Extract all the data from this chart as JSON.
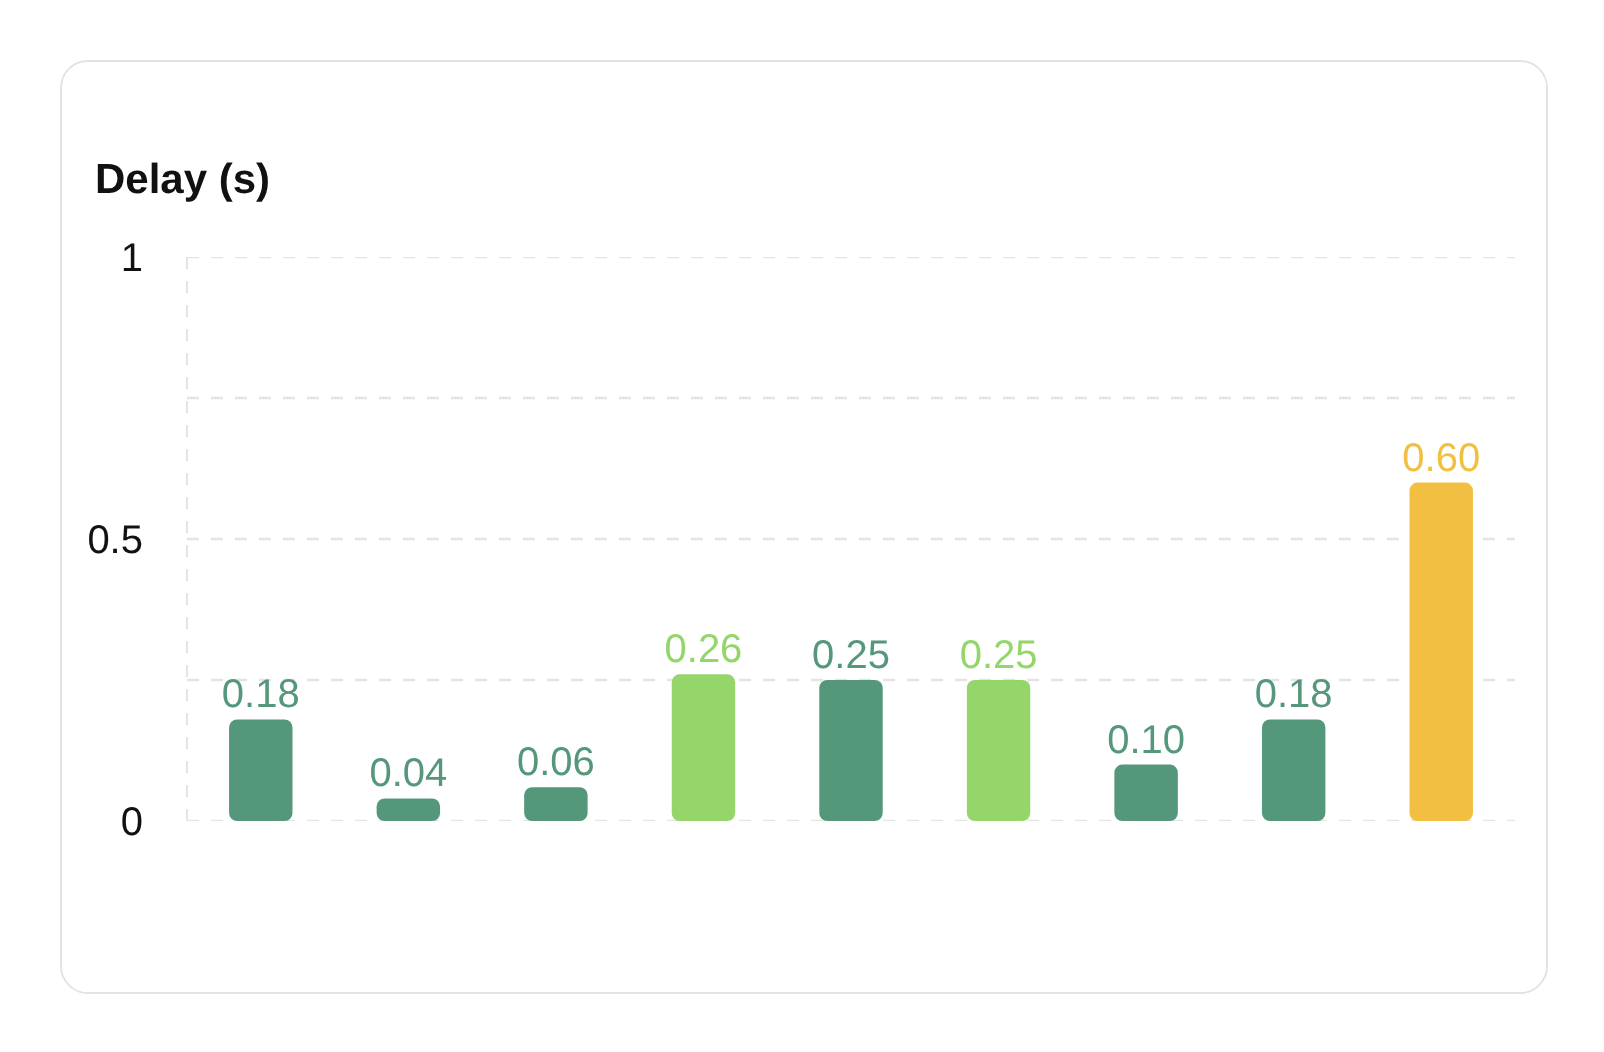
{
  "chart_data": {
    "type": "bar",
    "title": "Delay (s)",
    "categories": [
      null,
      null,
      null,
      null,
      null,
      null,
      null,
      null,
      null
    ],
    "values": [
      0.18,
      0.04,
      0.06,
      0.26,
      0.25,
      0.25,
      0.1,
      0.18,
      0.6
    ],
    "colors": [
      "#55977a",
      "#55977a",
      "#55977a",
      "#95d66b",
      "#55977a",
      "#95d66b",
      "#55977a",
      "#55977a",
      "#f3bf43"
    ],
    "value_labels": [
      "0.18",
      "0.04",
      "0.06",
      "0.26",
      "0.25",
      "0.25",
      "0.10",
      "0.18",
      "0.60"
    ],
    "ylim": [
      0,
      1
    ],
    "yticks": [
      0,
      {
        "value": 0.25,
        "label": null
      },
      0.5,
      {
        "value": 0.75,
        "label": null
      },
      1
    ],
    "grid": "y",
    "tick_labels": "y"
  }
}
